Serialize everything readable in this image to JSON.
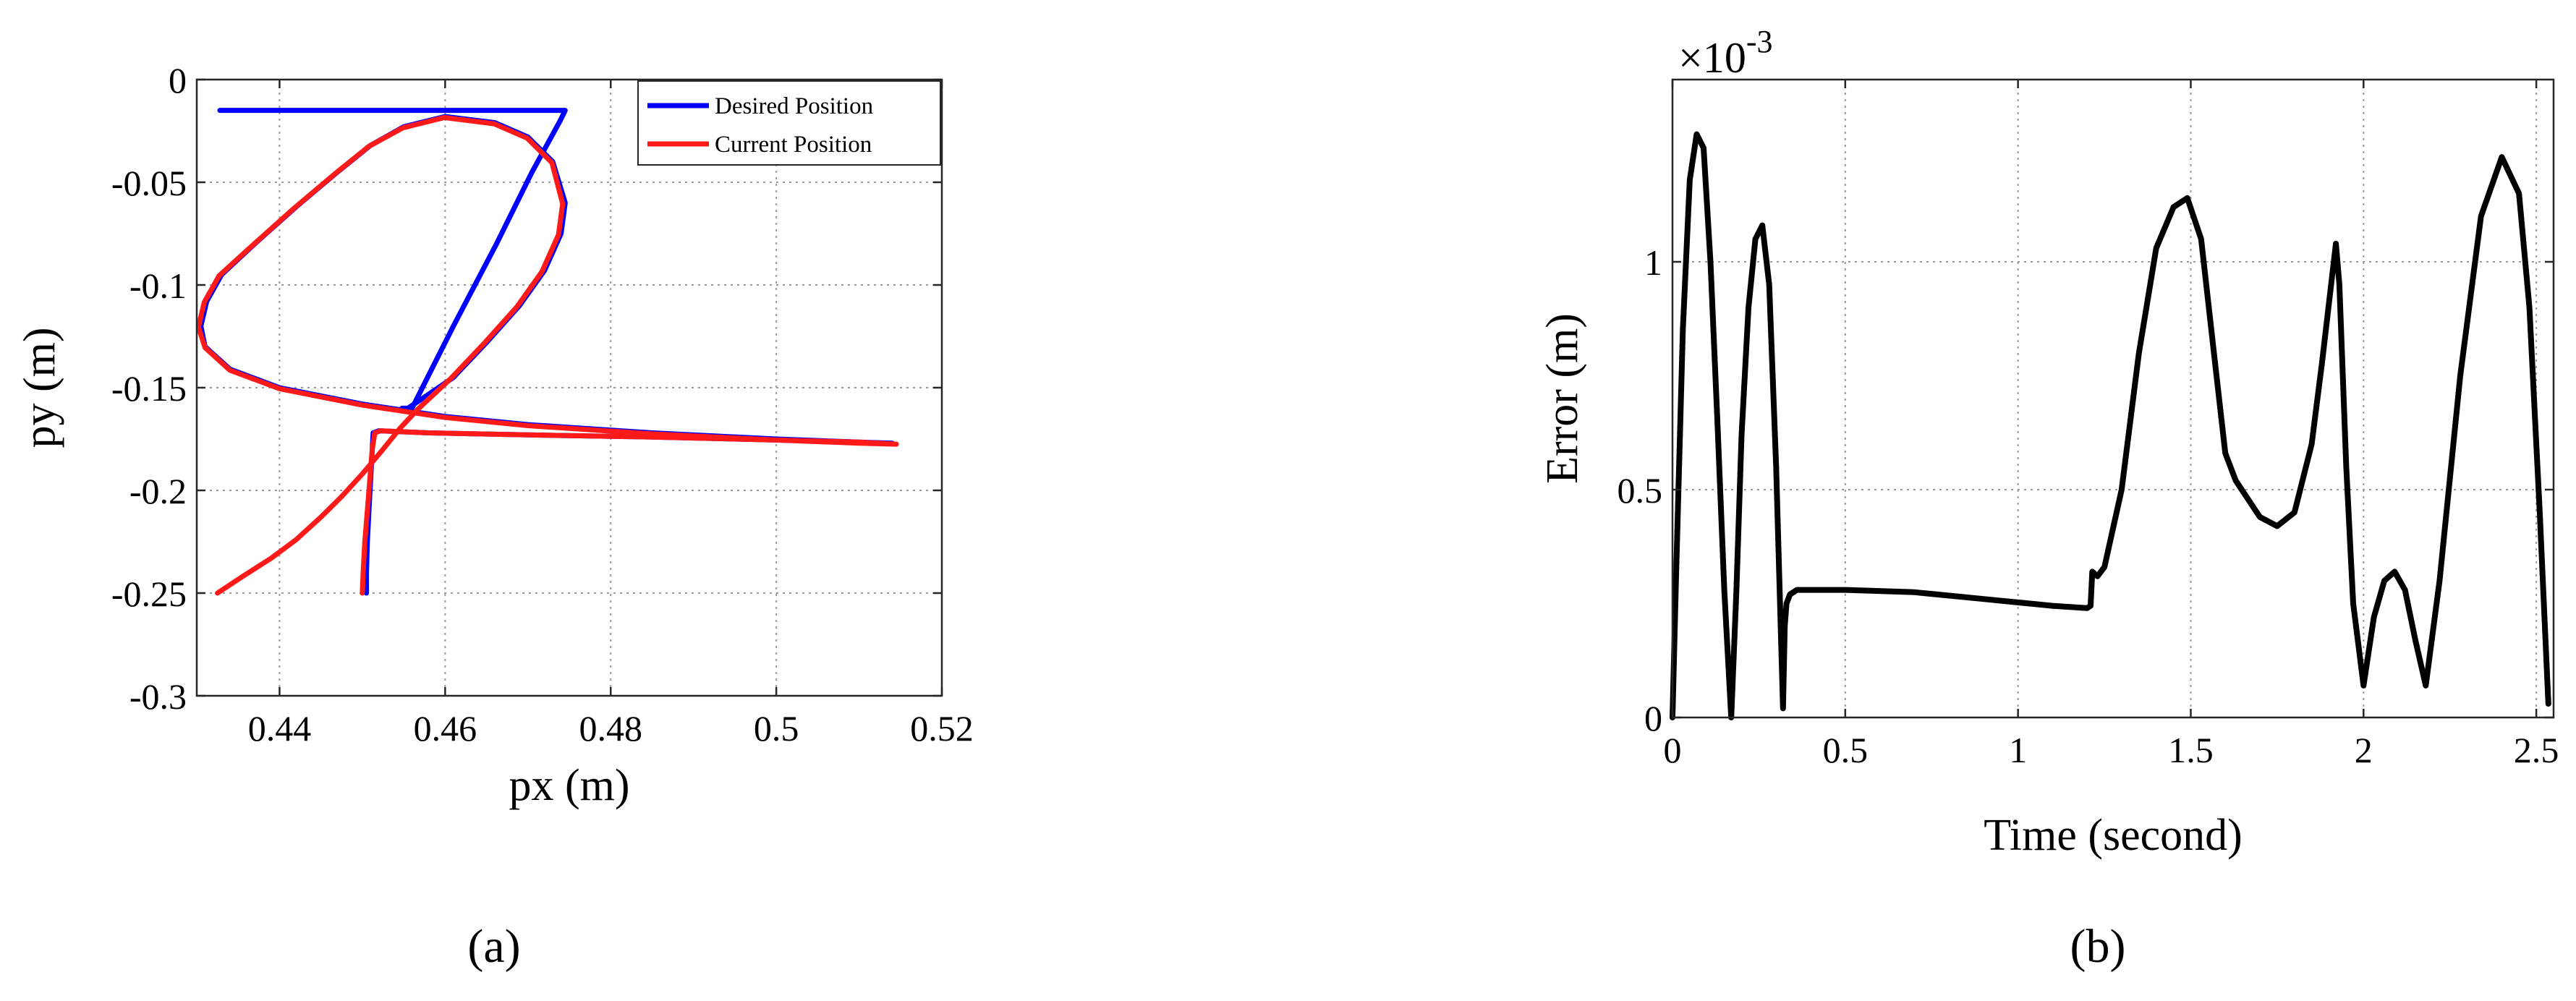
{
  "chart_data": [
    {
      "type": "line",
      "panel_label": "(a)",
      "xlabel": "px (m)",
      "ylabel": "py (m)",
      "xlim": [
        0.43,
        0.52
      ],
      "ylim": [
        -0.3,
        0
      ],
      "xticks": [
        0.44,
        0.46,
        0.48,
        0.5,
        0.52
      ],
      "xtick_labels": [
        "0.44",
        "0.46",
        "0.48",
        "0.5",
        "0.52"
      ],
      "yticks": [
        0,
        -0.05,
        -0.1,
        -0.15,
        -0.2,
        -0.25,
        -0.3
      ],
      "ytick_labels": [
        "0",
        "-0.05",
        "-0.1",
        "-0.15",
        "-0.2",
        "-0.25",
        "-0.3"
      ],
      "grid": true,
      "legend_position": "top-right",
      "series": [
        {
          "name": "Desired Position",
          "color": "#0000ff",
          "x": [
            0.4505,
            0.4505,
            0.4506,
            0.4508,
            0.451,
            0.4512,
            0.4513,
            0.452,
            0.458,
            0.47,
            0.485,
            0.5,
            0.51,
            0.514,
            0.51,
            0.5,
            0.485,
            0.47,
            0.46,
            0.45,
            0.44,
            0.434,
            0.431,
            0.4305,
            0.4312,
            0.433,
            0.437,
            0.442,
            0.447,
            0.451,
            0.455,
            0.46,
            0.466,
            0.47,
            0.473,
            0.4745,
            0.474,
            0.472,
            0.469,
            0.465,
            0.461,
            0.457,
            0.4555,
            0.4548,
            0.4548,
            0.456,
            0.461,
            0.4662,
            0.4705,
            0.4739,
            0.4745,
            0.4735,
            0.4705,
            0.465,
            0.459,
            0.453,
            0.447,
            0.441,
            0.4365,
            0.4328
          ],
          "y": [
            -0.25,
            -0.24,
            -0.225,
            -0.21,
            -0.195,
            -0.18,
            -0.172,
            -0.171,
            -0.172,
            -0.173,
            -0.174,
            -0.1755,
            -0.1765,
            -0.177,
            -0.1765,
            -0.175,
            -0.172,
            -0.168,
            -0.164,
            -0.158,
            -0.15,
            -0.141,
            -0.13,
            -0.12,
            -0.108,
            -0.095,
            -0.08,
            -0.062,
            -0.045,
            -0.032,
            -0.023,
            -0.018,
            -0.021,
            -0.028,
            -0.04,
            -0.06,
            -0.075,
            -0.093,
            -0.11,
            -0.128,
            -0.145,
            -0.156,
            -0.16,
            -0.16,
            -0.16,
            -0.16,
            -0.12,
            -0.08,
            -0.045,
            -0.02,
            -0.015,
            -0.015,
            -0.015,
            -0.015,
            -0.015,
            -0.015,
            -0.015,
            -0.015,
            -0.015,
            -0.015
          ]
        },
        {
          "name": "Current Position",
          "color": "#ff1a1a",
          "x": [
            0.45,
            0.4501,
            0.4503,
            0.4506,
            0.4509,
            0.4512,
            0.4515,
            0.4522,
            0.458,
            0.47,
            0.485,
            0.5,
            0.51,
            0.5145,
            0.51,
            0.5,
            0.485,
            0.47,
            0.46,
            0.45,
            0.44,
            0.434,
            0.431,
            0.4302,
            0.4309,
            0.4327,
            0.4368,
            0.4418,
            0.4468,
            0.4508,
            0.4549,
            0.4599,
            0.4659,
            0.4699,
            0.4729,
            0.4742,
            0.4737,
            0.4717,
            0.4687,
            0.4647,
            0.4607,
            0.4567,
            0.4545,
            0.4525,
            0.45,
            0.4475,
            0.445,
            0.442,
            0.439,
            0.4355,
            0.4325
          ],
          "y": [
            -0.25,
            -0.24,
            -0.225,
            -0.21,
            -0.195,
            -0.18,
            -0.172,
            -0.171,
            -0.172,
            -0.173,
            -0.174,
            -0.1755,
            -0.1765,
            -0.1775,
            -0.177,
            -0.1755,
            -0.1725,
            -0.1685,
            -0.1645,
            -0.1585,
            -0.1505,
            -0.1415,
            -0.1305,
            -0.1205,
            -0.1085,
            -0.0955,
            -0.0805,
            -0.0625,
            -0.0455,
            -0.0325,
            -0.0235,
            -0.0185,
            -0.0215,
            -0.0285,
            -0.0405,
            -0.0605,
            -0.0755,
            -0.0935,
            -0.1105,
            -0.1285,
            -0.1455,
            -0.1605,
            -0.17,
            -0.18,
            -0.192,
            -0.203,
            -0.213,
            -0.224,
            -0.233,
            -0.242,
            -0.25
          ]
        }
      ]
    },
    {
      "type": "line",
      "panel_label": "(b)",
      "xlabel": "Time (second)",
      "ylabel": "Error (m)",
      "y_multiplier_base": "×10",
      "y_multiplier_exponent": "-3",
      "xlim": [
        0,
        2.55
      ],
      "ylim": [
        0,
        1.4
      ],
      "xticks": [
        0,
        0.5,
        1,
        1.5,
        2,
        2.5
      ],
      "xtick_labels": [
        "0",
        "0.5",
        "1",
        "1.5",
        "2",
        "2.5"
      ],
      "yticks": [
        0,
        0.5,
        1
      ],
      "ytick_labels": [
        "0",
        "0.5",
        "1"
      ],
      "grid": true,
      "series": [
        {
          "color": "#000000",
          "x": [
            0,
            0.01,
            0.03,
            0.05,
            0.07,
            0.09,
            0.11,
            0.13,
            0.15,
            0.17,
            0.185,
            0.2,
            0.22,
            0.24,
            0.26,
            0.28,
            0.3,
            0.32,
            0.325,
            0.33,
            0.34,
            0.36,
            0.5,
            0.7,
            0.9,
            1.1,
            1.2,
            1.21,
            1.215,
            1.23,
            1.25,
            1.3,
            1.35,
            1.4,
            1.45,
            1.49,
            1.53,
            1.57,
            1.6,
            1.63,
            1.7,
            1.75,
            1.8,
            1.85,
            1.88,
            1.92,
            1.93,
            1.95,
            1.97,
            2.0,
            2.03,
            2.06,
            2.09,
            2.12,
            2.15,
            2.18,
            2.22,
            2.28,
            2.34,
            2.4,
            2.45,
            2.48,
            2.51,
            2.535
          ],
          "y": [
            0,
            0.3,
            0.85,
            1.18,
            1.28,
            1.25,
            1.0,
            0.65,
            0.28,
            0,
            0.28,
            0.62,
            0.9,
            1.05,
            1.08,
            0.95,
            0.55,
            0.02,
            0.2,
            0.25,
            0.27,
            0.28,
            0.28,
            0.275,
            0.26,
            0.245,
            0.24,
            0.245,
            0.32,
            0.31,
            0.33,
            0.5,
            0.8,
            1.03,
            1.12,
            1.14,
            1.05,
            0.78,
            0.58,
            0.52,
            0.44,
            0.42,
            0.45,
            0.6,
            0.78,
            1.04,
            0.95,
            0.55,
            0.25,
            0.07,
            0.22,
            0.3,
            0.32,
            0.28,
            0.17,
            0.07,
            0.3,
            0.75,
            1.1,
            1.23,
            1.15,
            0.9,
            0.45,
            0.03
          ]
        }
      ]
    }
  ]
}
